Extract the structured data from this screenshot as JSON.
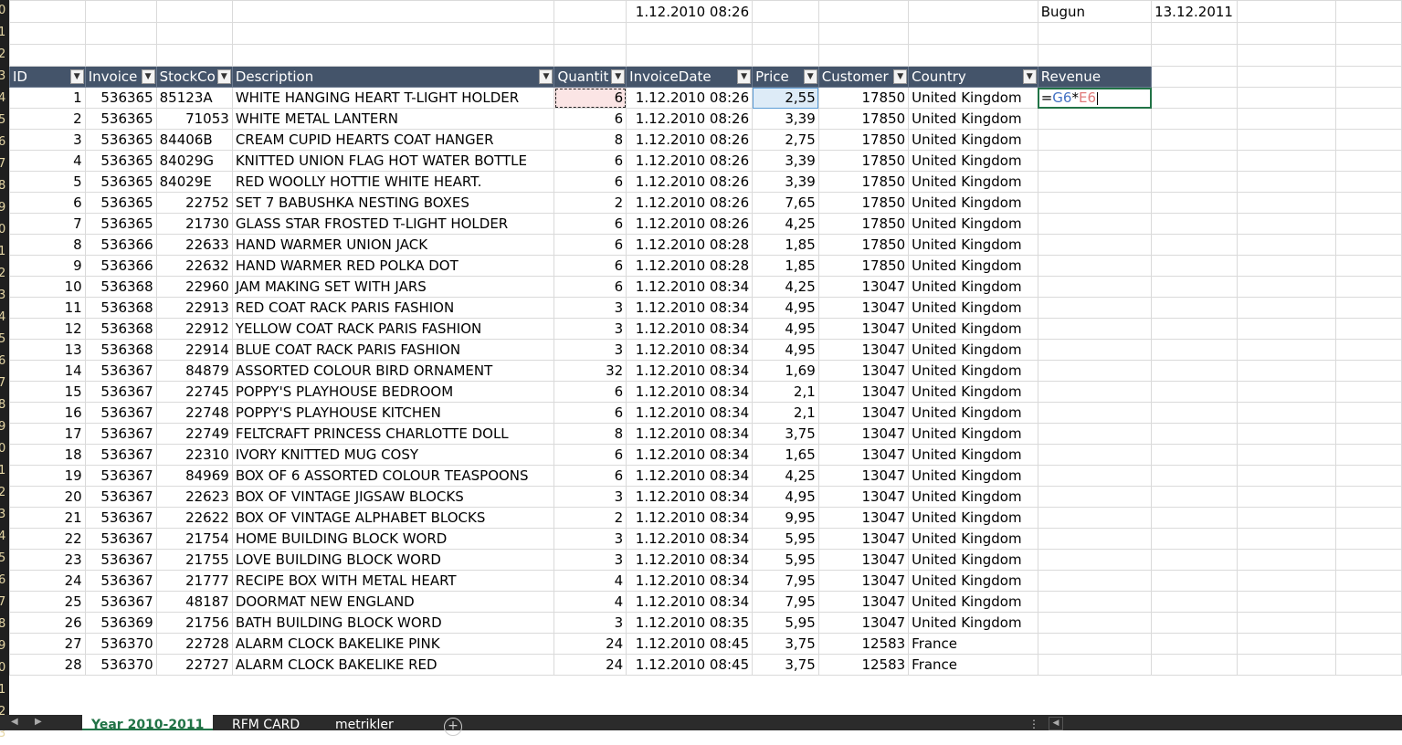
{
  "top_row": {
    "date_value": "1.12.2010 08:26",
    "bugun_label": "Bugun",
    "bugun_value": "13.12.2011"
  },
  "headers": [
    "ID",
    "Invoice",
    "StockCo",
    "Description",
    "Quantit",
    "InvoiceDate",
    "Price",
    "Customer",
    "Country",
    "Revenue"
  ],
  "formula": {
    "eq": "=",
    "ref1": "G6",
    "op": "*",
    "ref2": "E6"
  },
  "rows": [
    [
      "1",
      "536365",
      "85123A",
      "WHITE HANGING HEART T-LIGHT HOLDER",
      "6",
      "1.12.2010 08:26",
      "2,55",
      "17850",
      "United Kingdom"
    ],
    [
      "2",
      "536365",
      "71053",
      "WHITE METAL LANTERN",
      "6",
      "1.12.2010 08:26",
      "3,39",
      "17850",
      "United Kingdom"
    ],
    [
      "3",
      "536365",
      "84406B",
      "CREAM CUPID HEARTS COAT HANGER",
      "8",
      "1.12.2010 08:26",
      "2,75",
      "17850",
      "United Kingdom"
    ],
    [
      "4",
      "536365",
      "84029G",
      "KNITTED UNION FLAG HOT WATER BOTTLE",
      "6",
      "1.12.2010 08:26",
      "3,39",
      "17850",
      "United Kingdom"
    ],
    [
      "5",
      "536365",
      "84029E",
      "RED WOOLLY HOTTIE WHITE HEART.",
      "6",
      "1.12.2010 08:26",
      "3,39",
      "17850",
      "United Kingdom"
    ],
    [
      "6",
      "536365",
      "22752",
      "SET 7 BABUSHKA NESTING BOXES",
      "2",
      "1.12.2010 08:26",
      "7,65",
      "17850",
      "United Kingdom"
    ],
    [
      "7",
      "536365",
      "21730",
      "GLASS STAR FROSTED T-LIGHT HOLDER",
      "6",
      "1.12.2010 08:26",
      "4,25",
      "17850",
      "United Kingdom"
    ],
    [
      "8",
      "536366",
      "22633",
      "HAND WARMER UNION JACK",
      "6",
      "1.12.2010 08:28",
      "1,85",
      "17850",
      "United Kingdom"
    ],
    [
      "9",
      "536366",
      "22632",
      "HAND WARMER RED POLKA DOT",
      "6",
      "1.12.2010 08:28",
      "1,85",
      "17850",
      "United Kingdom"
    ],
    [
      "10",
      "536368",
      "22960",
      "JAM MAKING SET WITH JARS",
      "6",
      "1.12.2010 08:34",
      "4,25",
      "13047",
      "United Kingdom"
    ],
    [
      "11",
      "536368",
      "22913",
      "RED COAT RACK PARIS FASHION",
      "3",
      "1.12.2010 08:34",
      "4,95",
      "13047",
      "United Kingdom"
    ],
    [
      "12",
      "536368",
      "22912",
      "YELLOW COAT RACK PARIS FASHION",
      "3",
      "1.12.2010 08:34",
      "4,95",
      "13047",
      "United Kingdom"
    ],
    [
      "13",
      "536368",
      "22914",
      "BLUE COAT RACK PARIS FASHION",
      "3",
      "1.12.2010 08:34",
      "4,95",
      "13047",
      "United Kingdom"
    ],
    [
      "14",
      "536367",
      "84879",
      "ASSORTED COLOUR BIRD ORNAMENT",
      "32",
      "1.12.2010 08:34",
      "1,69",
      "13047",
      "United Kingdom"
    ],
    [
      "15",
      "536367",
      "22745",
      "POPPY'S PLAYHOUSE BEDROOM",
      "6",
      "1.12.2010 08:34",
      "2,1",
      "13047",
      "United Kingdom"
    ],
    [
      "16",
      "536367",
      "22748",
      "POPPY'S PLAYHOUSE KITCHEN",
      "6",
      "1.12.2010 08:34",
      "2,1",
      "13047",
      "United Kingdom"
    ],
    [
      "17",
      "536367",
      "22749",
      "FELTCRAFT PRINCESS CHARLOTTE DOLL",
      "8",
      "1.12.2010 08:34",
      "3,75",
      "13047",
      "United Kingdom"
    ],
    [
      "18",
      "536367",
      "22310",
      "IVORY KNITTED MUG COSY",
      "6",
      "1.12.2010 08:34",
      "1,65",
      "13047",
      "United Kingdom"
    ],
    [
      "19",
      "536367",
      "84969",
      "BOX OF 6 ASSORTED COLOUR TEASPOONS",
      "6",
      "1.12.2010 08:34",
      "4,25",
      "13047",
      "United Kingdom"
    ],
    [
      "20",
      "536367",
      "22623",
      "BOX OF VINTAGE JIGSAW BLOCKS",
      "3",
      "1.12.2010 08:34",
      "4,95",
      "13047",
      "United Kingdom"
    ],
    [
      "21",
      "536367",
      "22622",
      "BOX OF VINTAGE ALPHABET BLOCKS",
      "2",
      "1.12.2010 08:34",
      "9,95",
      "13047",
      "United Kingdom"
    ],
    [
      "22",
      "536367",
      "21754",
      "HOME BUILDING BLOCK WORD",
      "3",
      "1.12.2010 08:34",
      "5,95",
      "13047",
      "United Kingdom"
    ],
    [
      "23",
      "536367",
      "21755",
      "LOVE BUILDING BLOCK WORD",
      "3",
      "1.12.2010 08:34",
      "5,95",
      "13047",
      "United Kingdom"
    ],
    [
      "24",
      "536367",
      "21777",
      "RECIPE BOX WITH METAL HEART",
      "4",
      "1.12.2010 08:34",
      "7,95",
      "13047",
      "United Kingdom"
    ],
    [
      "25",
      "536367",
      "48187",
      "DOORMAT NEW ENGLAND",
      "4",
      "1.12.2010 08:34",
      "7,95",
      "13047",
      "United Kingdom"
    ],
    [
      "26",
      "536369",
      "21756",
      "BATH BUILDING BLOCK WORD",
      "3",
      "1.12.2010 08:35",
      "5,95",
      "13047",
      "United Kingdom"
    ],
    [
      "27",
      "536370",
      "22728",
      "ALARM CLOCK BAKELIKE PINK",
      "24",
      "1.12.2010 08:45",
      "3,75",
      "12583",
      "France"
    ],
    [
      "28",
      "536370",
      "22727",
      "ALARM CLOCK BAKELIKE RED",
      "24",
      "1.12.2010 08:45",
      "3,75",
      "12583",
      "France"
    ]
  ],
  "left_row_numbers": [
    "0",
    "1",
    "2",
    "3",
    "4",
    "5",
    "6",
    "7",
    "8",
    "9",
    "0",
    "1",
    "2",
    "3",
    "4",
    "5",
    "6",
    "7",
    "8",
    "9",
    "0",
    "1",
    "2",
    "3",
    "4",
    "5",
    "6",
    "7",
    "8",
    "9",
    "0",
    "1",
    "2",
    "3"
  ],
  "tabs": [
    {
      "label": "Year 2010-2011",
      "active": true
    },
    {
      "label": "RFM CARD",
      "active": false
    },
    {
      "label": "metrikler",
      "active": false
    }
  ],
  "add_sheet_icon": "plus-circle-icon",
  "colors": {
    "header_bg": "#44546a",
    "header_text": "#ffffff",
    "active_cell_border": "#217346",
    "formula_ref1": "#4472c4",
    "formula_ref2": "#e07b7b"
  }
}
